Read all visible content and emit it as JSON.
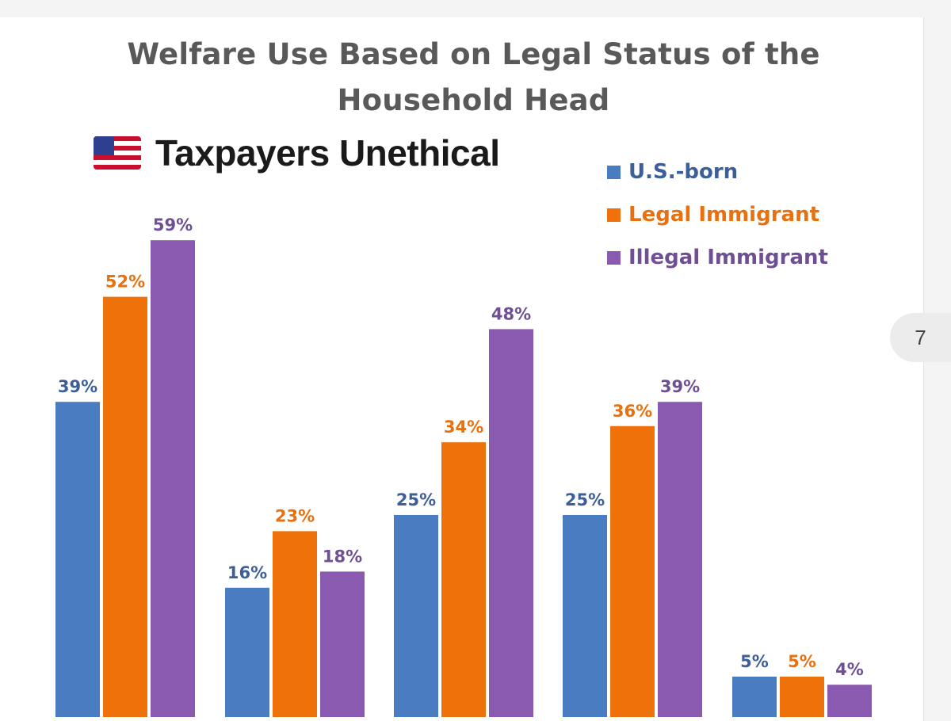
{
  "chart_data": {
    "type": "bar",
    "title": "Welfare Use Based on Legal Status of the Household Head",
    "title_lines": [
      "Welfare Use Based on Legal Status of the",
      "Household Head"
    ],
    "xlabel": "",
    "ylabel": "",
    "ylim": [
      0,
      67
    ],
    "grid": false,
    "legend_position": "top-right",
    "categories": [
      "",
      "",
      "",
      "",
      ""
    ],
    "series": [
      {
        "name": "U.S.-born",
        "color": "#4a7cc2",
        "label_color": "#3d5f99",
        "values": [
          39,
          16,
          25,
          25,
          5
        ],
        "labels": [
          "39%",
          "16%",
          "25%",
          "25%",
          "5%"
        ]
      },
      {
        "name": "Legal Immigrant",
        "color": "#ef7109",
        "label_color": "#e8700e",
        "values": [
          52,
          23,
          34,
          36,
          5
        ],
        "labels": [
          "52%",
          "23%",
          "34%",
          "36%",
          "5%"
        ]
      },
      {
        "name": "Illegal Immigrant",
        "color": "#8a5ab0",
        "label_color": "#6f4f94",
        "values": [
          59,
          18,
          48,
          39,
          4
        ],
        "labels": [
          "59%",
          "18%",
          "48%",
          "39%",
          "4%"
        ]
      }
    ]
  },
  "overlay": {
    "flag_icon": "us-flag-icon",
    "text": "Taxpayers Unethical"
  },
  "page_badge": "7"
}
